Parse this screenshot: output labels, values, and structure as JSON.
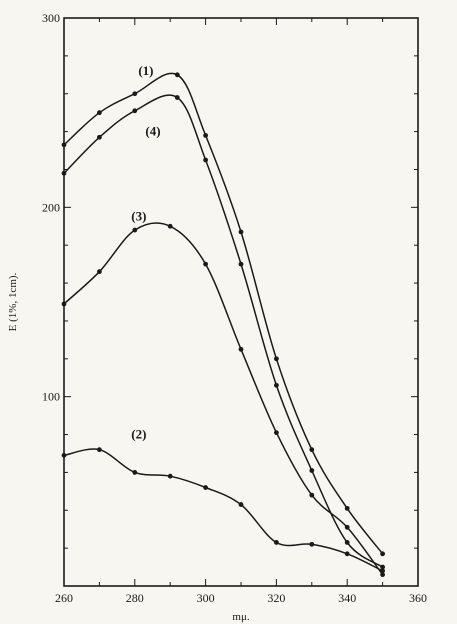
{
  "chart_data": {
    "type": "line",
    "title": "",
    "xlabel": "mμ.",
    "ylabel": "E (1%, 1cm).",
    "xlim": [
      260,
      360
    ],
    "ylim": [
      0,
      300
    ],
    "x_ticks": [
      260,
      280,
      300,
      320,
      340,
      360
    ],
    "y_ticks": [
      100,
      200,
      300
    ],
    "grid": false,
    "legend": "inline curve labels",
    "line_color": "#1a1a1a",
    "series": [
      {
        "label": "(1)",
        "x": [
          260,
          270,
          280,
          292,
          300,
          310,
          320,
          330,
          340,
          350
        ],
        "y": [
          233,
          250,
          260,
          270,
          238,
          187,
          120,
          72,
          41,
          17
        ],
        "label_at": [
          281,
          270
        ]
      },
      {
        "label": "(4)",
        "x": [
          260,
          270,
          280,
          292,
          300,
          310,
          320,
          330,
          340,
          350
        ],
        "y": [
          218,
          237,
          251,
          258,
          225,
          170,
          106,
          61,
          23,
          10
        ],
        "label_at": [
          283,
          238
        ]
      },
      {
        "label": "(3)",
        "x": [
          260,
          270,
          280,
          290,
          300,
          310,
          320,
          330,
          340,
          350
        ],
        "y": [
          149,
          166,
          188,
          190,
          170,
          125,
          81,
          48,
          31,
          6
        ],
        "label_at": [
          279,
          193
        ]
      },
      {
        "label": "(2)",
        "x": [
          260,
          270,
          280,
          290,
          300,
          310,
          320,
          330,
          340,
          350
        ],
        "y": [
          69,
          72,
          60,
          58,
          52,
          43,
          23,
          22,
          17,
          8
        ],
        "label_at": [
          279,
          78
        ]
      }
    ]
  }
}
